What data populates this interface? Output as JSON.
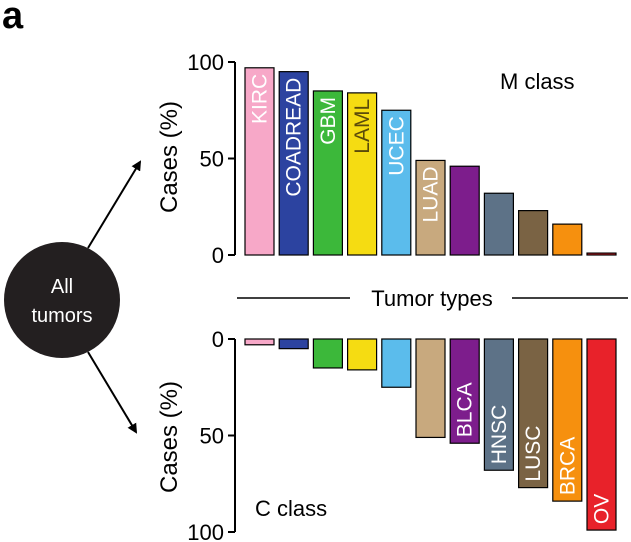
{
  "panel_label": "a",
  "node_label_lines": [
    "All",
    "tumors"
  ],
  "divider_label": "Tumor types",
  "colors": {
    "KIRC": "#f7a8c8",
    "COADREAD": "#2c43a0",
    "GBM": "#3cb83a",
    "LAML": "#f5dc12",
    "UCEC": "#5bbcec",
    "LUAD": "#c8a97e",
    "BLCA": "#7d1d8c",
    "HNSC": "#5d7287",
    "LUSC": "#7a6344",
    "BRCA": "#f6900e",
    "OV": "#e8222a"
  },
  "chart_data": [
    {
      "type": "bar",
      "title": "M class",
      "ylabel": "Cases (%)",
      "ylim": [
        0,
        100
      ],
      "yticks": [
        0,
        50,
        100
      ],
      "direction": "up",
      "categories": [
        "KIRC",
        "COADREAD",
        "GBM",
        "LAML",
        "UCEC",
        "LUAD",
        "BLCA",
        "HNSC",
        "LUSC",
        "BRCA",
        "OV"
      ],
      "bar_labels": [
        "KIRC",
        "COADREAD",
        "GBM",
        "LAML",
        "UCEC",
        "LUAD",
        "",
        "",
        "",
        "",
        ""
      ],
      "values": [
        97,
        95,
        85,
        84,
        75,
        49,
        46,
        32,
        23,
        16,
        1
      ]
    },
    {
      "type": "bar",
      "title": "C class",
      "ylabel": "Cases (%)",
      "ylim": [
        0,
        100
      ],
      "yticks": [
        0,
        50,
        100
      ],
      "direction": "down",
      "categories": [
        "KIRC",
        "COADREAD",
        "GBM",
        "LAML",
        "UCEC",
        "LUAD",
        "BLCA",
        "HNSC",
        "LUSC",
        "BRCA",
        "OV"
      ],
      "bar_labels": [
        "",
        "",
        "",
        "",
        "",
        "",
        "BLCA",
        "HNSC",
        "LUSC",
        "BRCA",
        "OV"
      ],
      "values": [
        3,
        5,
        15,
        16,
        25,
        51,
        54,
        68,
        77,
        84,
        99
      ]
    }
  ]
}
